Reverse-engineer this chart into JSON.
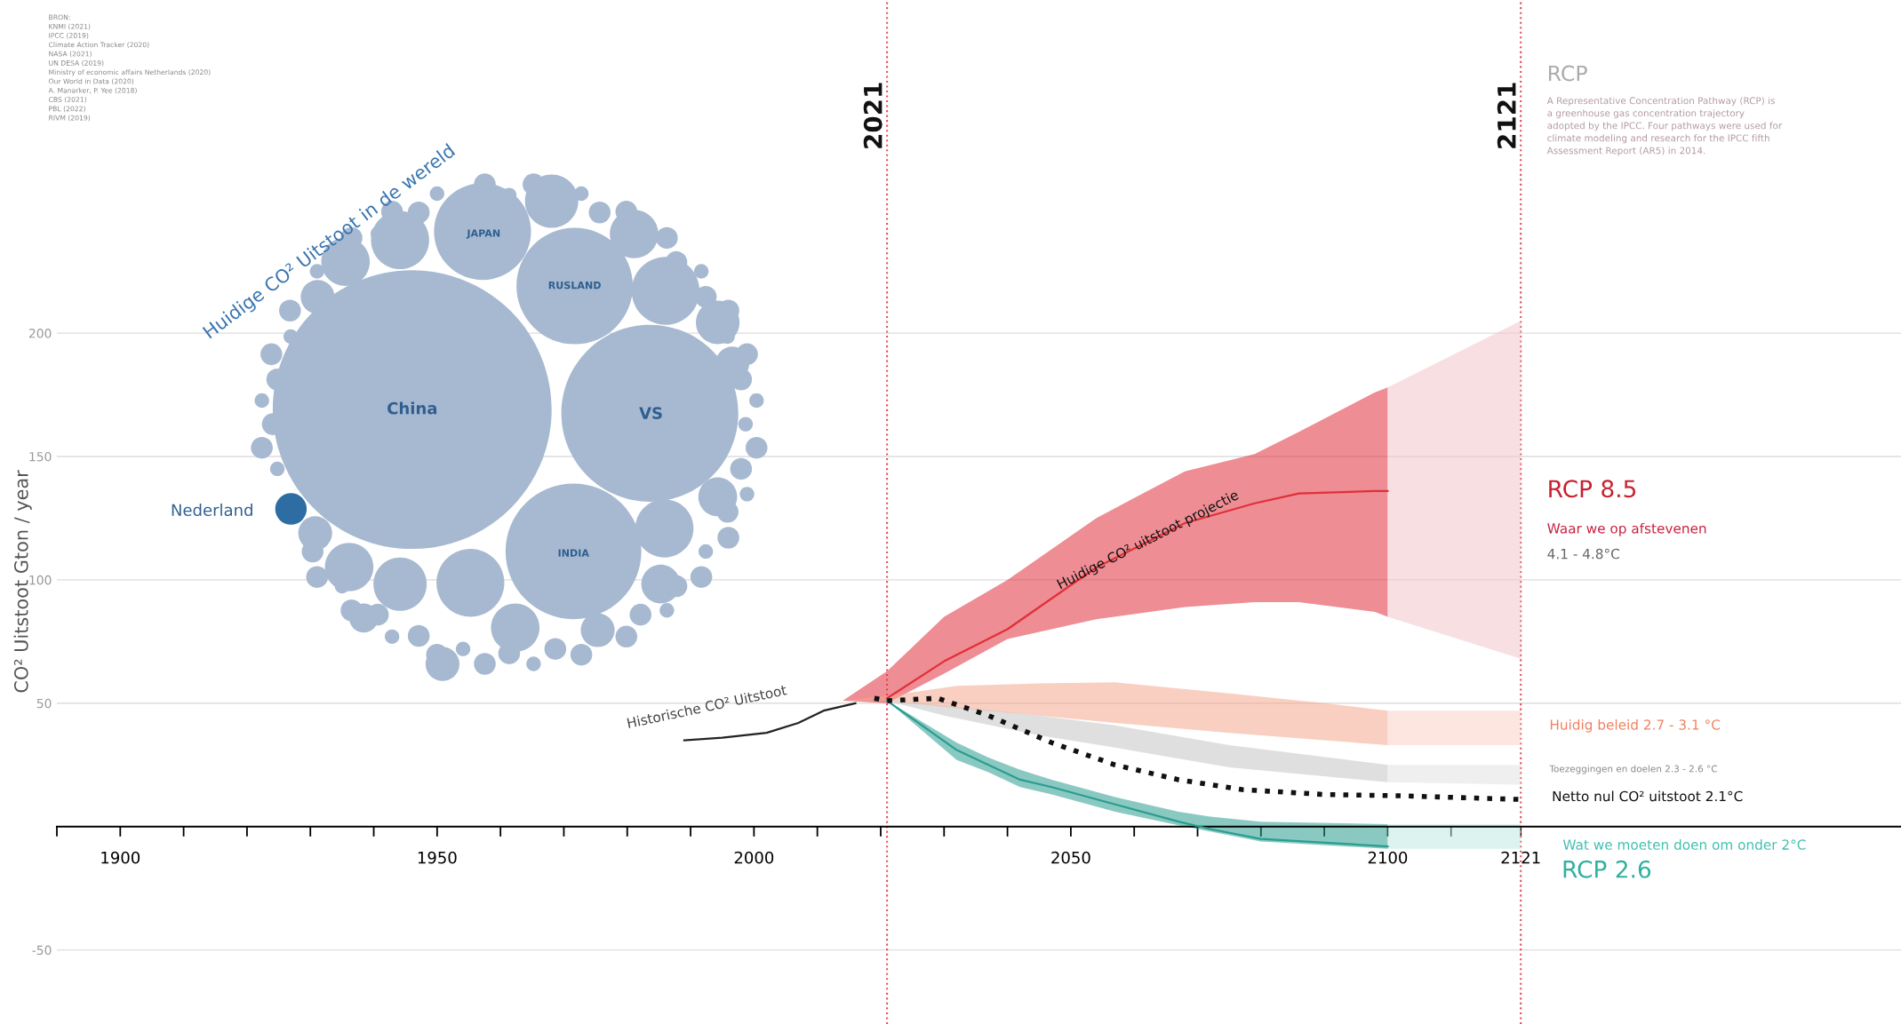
{
  "chart_data": [
    {
      "type": "line",
      "ylabel": "CO² Uitstoot Gton / year",
      "xlim": [
        1890,
        2181
      ],
      "ylim": [
        -80,
        335
      ],
      "xticks": [
        {
          "value": 1890,
          "label": null
        },
        1900,
        {
          "value": 1910,
          "label": null
        },
        {
          "value": 1920,
          "label": null
        },
        {
          "value": 1930,
          "label": null
        },
        {
          "value": 1940,
          "label": null
        },
        1950,
        {
          "value": 1960,
          "label": null
        },
        {
          "value": 1970,
          "label": null
        },
        {
          "value": 1980,
          "label": null
        },
        {
          "value": 1990,
          "label": null
        },
        2000,
        {
          "value": 2010,
          "label": null
        },
        {
          "value": 2020,
          "label": null
        },
        {
          "value": 2030,
          "label": null
        },
        {
          "value": 2040,
          "label": null
        },
        2050,
        {
          "value": 2060,
          "label": null
        },
        {
          "value": 2070,
          "label": null
        },
        {
          "value": 2080,
          "label": null
        },
        {
          "value": 2090,
          "label": null
        },
        2100,
        {
          "value": 2110,
          "label": null
        },
        2121
      ],
      "yticks": [
        -50,
        50,
        100,
        150,
        200
      ],
      "grid": "y",
      "series": [
        {
          "type": "line",
          "color": "#222222",
          "x": [
            1989,
            1995,
            2002,
            2007,
            2011,
            2016
          ],
          "values": [
            35,
            36,
            38,
            42,
            47,
            50
          ]
        },
        {
          "type": "line",
          "color": "#e0303a",
          "x": [
            2014,
            2021,
            2030,
            2040,
            2054,
            2068,
            2079,
            2086,
            2098,
            2100
          ],
          "values": [
            null,
            52,
            67,
            80,
            105,
            123,
            131,
            135,
            136,
            136
          ],
          "lower": [
            51,
            50,
            62,
            76,
            84,
            89,
            91,
            91,
            87,
            85
          ],
          "upper": [
            51,
            63,
            85,
            100,
            125,
            144,
            151,
            160,
            176,
            178
          ]
        },
        {
          "type": "line",
          "color": "#f0c4cb",
          "x": [
            2100,
            2121
          ],
          "values": [
            null,
            null
          ],
          "lower": [
            85,
            68
          ],
          "upper": [
            178,
            205
          ]
        },
        {
          "type": "line",
          "color": "#f4a88e",
          "x": [
            2014,
            2021,
            2032,
            2045,
            2057,
            2075,
            2090,
            2100
          ],
          "values": [
            null,
            null,
            null,
            null,
            null,
            null,
            null,
            null
          ],
          "lower": [
            51,
            51,
            48,
            45,
            42,
            38,
            35,
            33
          ],
          "upper": [
            51,
            53,
            57,
            58,
            58.5,
            54,
            50,
            47
          ]
        },
        {
          "type": "line",
          "color": "#f9d2c4",
          "x": [
            2100,
            2121
          ],
          "values": [
            null,
            null
          ],
          "lower": [
            33,
            33
          ],
          "upper": [
            47,
            47
          ]
        },
        {
          "type": "line",
          "color": "#c4c4c4",
          "x": [
            2021,
            2030,
            2045,
            2057,
            2075,
            2100
          ],
          "values": [
            null,
            null,
            null,
            null,
            null,
            null
          ],
          "lower": [
            51,
            45,
            37,
            32,
            24,
            18
          ],
          "upper": [
            51,
            49,
            45,
            41,
            33,
            25
          ]
        },
        {
          "type": "line",
          "color": "#e2e2e2",
          "x": [
            2100,
            2121
          ],
          "values": [
            null,
            null
          ],
          "lower": [
            18,
            17
          ],
          "upper": [
            25,
            25
          ]
        },
        {
          "type": "line",
          "color": "#2a9d8f",
          "x": [
            2021,
            2032,
            2037,
            2042,
            2047,
            2057,
            2067,
            2072,
            2080,
            2100
          ],
          "values": [
            51,
            31,
            25,
            19,
            16,
            9,
            2,
            -1,
            -5,
            -8
          ],
          "lower": [
            51,
            27,
            22,
            16,
            13,
            6,
            0.5,
            -2,
            -6,
            -9
          ],
          "upper": [
            51,
            34,
            28,
            23,
            19,
            12,
            6,
            4,
            2,
            1
          ]
        },
        {
          "type": "line",
          "color": "#bfe9e2",
          "x": [
            2100,
            2121
          ],
          "values": [
            null,
            null
          ],
          "lower": [
            -9,
            -9
          ],
          "upper": [
            1,
            1
          ]
        },
        {
          "type": "line",
          "color": "#111111",
          "line_style": "dotted",
          "x": [
            2019,
            2021,
            2029,
            2037,
            2047,
            2057,
            2067,
            2077,
            2090,
            2102,
            2121
          ],
          "values": [
            52,
            51,
            52,
            45,
            34,
            25,
            19,
            15,
            13,
            12.5,
            11
          ]
        }
      ],
      "ref_lines": [
        {
          "axis": "x",
          "value": 2021,
          "label": "2021",
          "color": "#e05060",
          "line_style": "dotted"
        },
        {
          "axis": "x",
          "value": 2121,
          "label": "2121",
          "color": "#e05060",
          "line_style": "dotted"
        }
      ],
      "annotations": [
        "BRON:\nKNMI (2021)\nIPCC (2019)\nClimate Action Tracker (2020)\nNASA (2021)\nUN DESA (2019)\nMinistry of economic affairs Netherlands (2020)\nOur World in Data (2020)\nA. Manarker, P. Yee (2018)\nCBS (2021)\nPBL (2022)\nRIVM (2019)",
        "RCP",
        "A Representative Concentration Pathway (RCP) is\na greenhouse gas concentration trajectory\nadopted by the IPCC. Four pathways were used for\nclimate modeling and research for the IPCC fifth\nAssessment Report (AR5) in 2014.",
        "Historische CO² Uitstoot",
        "Huidige CO² uitstoot projectie",
        "RCP 8.5",
        "Waar we op afstevenen",
        "4.1 - 4.8°C",
        "Huidig beleid 2.7 - 3.1 °C",
        "Toezeggingen en doelen 2.3 - 2.6 °C",
        "Netto nul CO² uitstoot 2.1°C",
        "Wat we moeten doen om onder 2°C",
        "RCP 2.6"
      ]
    },
    {
      "type": "other",
      "title": "Huidige CO² Uitstoot in de wereld",
      "categories": [
        "China",
        "VS",
        "INDIA",
        "RUSLAND",
        "JAPAN",
        "Nederland"
      ]
    }
  ]
}
